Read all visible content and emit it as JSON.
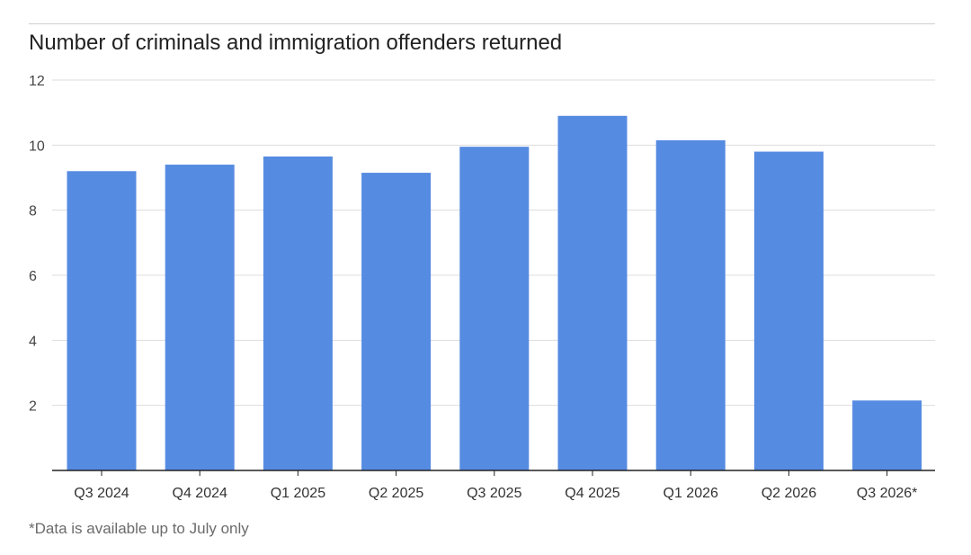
{
  "chart_data": {
    "type": "bar",
    "title": "Number of criminals and immigration offenders returned",
    "xlabel": "",
    "ylabel": "",
    "categories": [
      "Q3 2024",
      "Q4 2024",
      "Q1 2025",
      "Q2 2025",
      "Q3 2025",
      "Q4 2025",
      "Q1 2026",
      "Q2 2026",
      "Q3 2026*"
    ],
    "values": [
      9.2,
      9.4,
      9.65,
      9.15,
      9.95,
      10.9,
      10.15,
      9.8,
      2.15
    ],
    "ylim": [
      0,
      12
    ],
    "yticks": [
      2,
      4,
      6,
      8,
      10,
      12
    ],
    "grid": true,
    "bar_color": "#568be2"
  },
  "footnote": "*Data is available up to July only"
}
